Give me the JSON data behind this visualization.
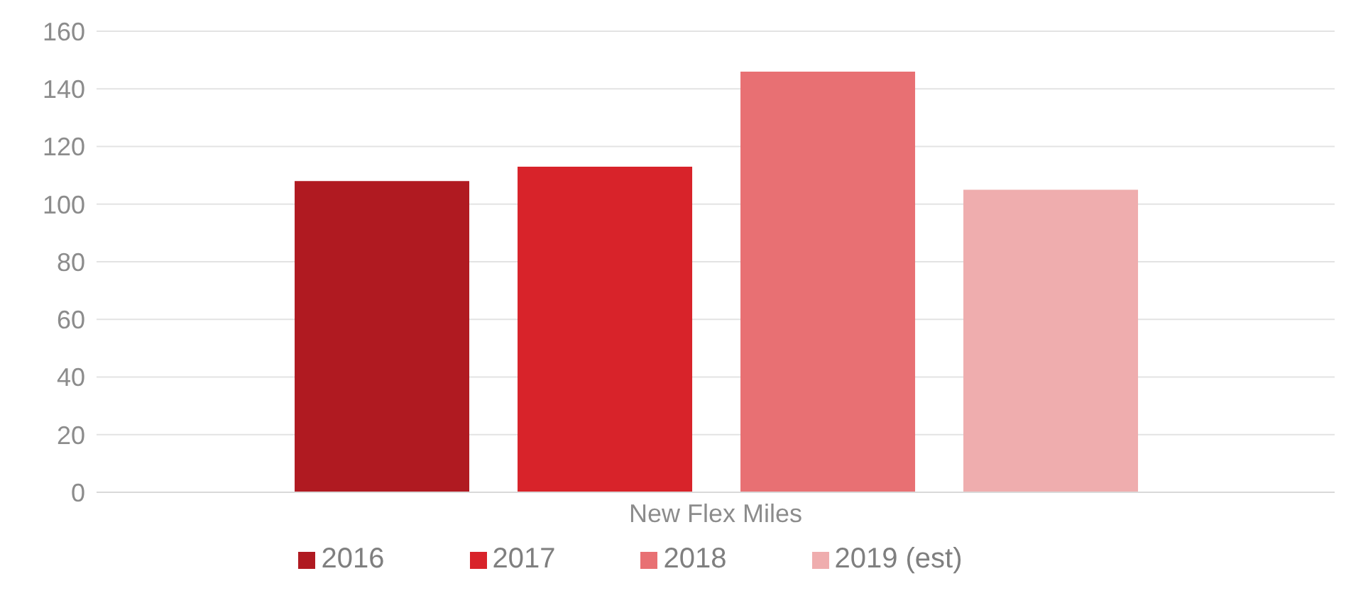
{
  "chart_data": {
    "type": "bar",
    "categories": [
      "New Flex Miles"
    ],
    "series": [
      {
        "name": "2016",
        "color": "#b01a21",
        "values": [
          108
        ]
      },
      {
        "name": "2017",
        "color": "#d8232a",
        "values": [
          113
        ]
      },
      {
        "name": "2018",
        "color": "#e87073",
        "values": [
          146
        ]
      },
      {
        "name": "2019 (est)",
        "color": "#efadae",
        "values": [
          105
        ]
      }
    ],
    "ylim": [
      0,
      160
    ],
    "yticks": [
      0,
      20,
      40,
      60,
      80,
      100,
      120,
      140,
      160
    ],
    "grid": "y",
    "legend": "bottom"
  }
}
